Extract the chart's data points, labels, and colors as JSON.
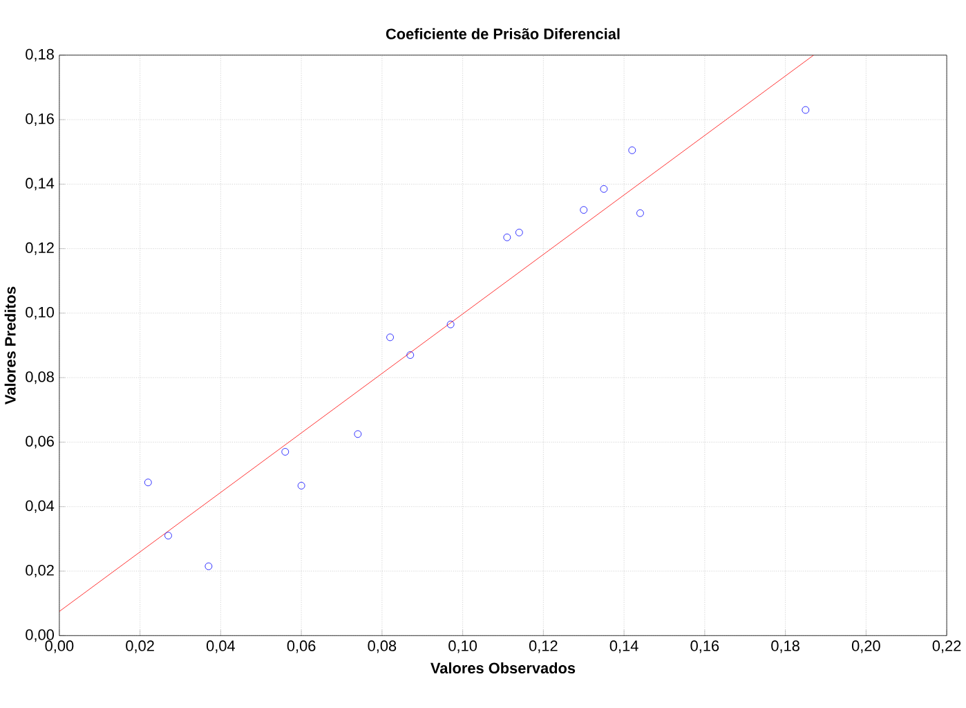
{
  "chart_data": {
    "type": "scatter",
    "title": "Coeficiente de Prisão Diferencial",
    "xlabel": "Valores Observados",
    "ylabel": "Valores Preditos",
    "xlim": [
      0,
      0.22
    ],
    "ylim": [
      0,
      0.18
    ],
    "xticks": [
      {
        "value": 0,
        "label": "0,00"
      },
      {
        "value": 0.02,
        "label": "0,02"
      },
      {
        "value": 0.04,
        "label": "0,04"
      },
      {
        "value": 0.06,
        "label": "0,06"
      },
      {
        "value": 0.08,
        "label": "0,08"
      },
      {
        "value": 0.1,
        "label": "0,10"
      },
      {
        "value": 0.12,
        "label": "0,12"
      },
      {
        "value": 0.14,
        "label": "0,14"
      },
      {
        "value": 0.16,
        "label": "0,16"
      },
      {
        "value": 0.18,
        "label": "0,18"
      },
      {
        "value": 0.2,
        "label": "0,20"
      },
      {
        "value": 0.22,
        "label": "0,22"
      }
    ],
    "yticks": [
      {
        "value": 0,
        "label": "0,00"
      },
      {
        "value": 0.02,
        "label": "0,02"
      },
      {
        "value": 0.04,
        "label": "0,04"
      },
      {
        "value": 0.06,
        "label": "0,06"
      },
      {
        "value": 0.08,
        "label": "0,08"
      },
      {
        "value": 0.1,
        "label": "0,10"
      },
      {
        "value": 0.12,
        "label": "0,12"
      },
      {
        "value": 0.14,
        "label": "0,14"
      },
      {
        "value": 0.16,
        "label": "0,16"
      },
      {
        "value": 0.18,
        "label": "0,18"
      }
    ],
    "grid": true,
    "series": [
      {
        "color": "#0000ff",
        "marker": "circle",
        "x": [
          0.022,
          0.027,
          0.037,
          0.056,
          0.06,
          0.074,
          0.082,
          0.087,
          0.097,
          0.111,
          0.114,
          0.13,
          0.135,
          0.142,
          0.144,
          0.185
        ],
        "values": [
          0.0475,
          0.031,
          0.0215,
          0.057,
          0.0465,
          0.0625,
          0.0925,
          0.087,
          0.0965,
          0.1235,
          0.125,
          0.132,
          0.1385,
          0.1505,
          0.131,
          0.163
        ]
      },
      {
        "type": "line",
        "color": "#ff0000",
        "marker": "none",
        "line_style": "solid",
        "x": [
          0,
          0.187
        ],
        "values": [
          0.0075,
          0.18
        ]
      }
    ]
  }
}
